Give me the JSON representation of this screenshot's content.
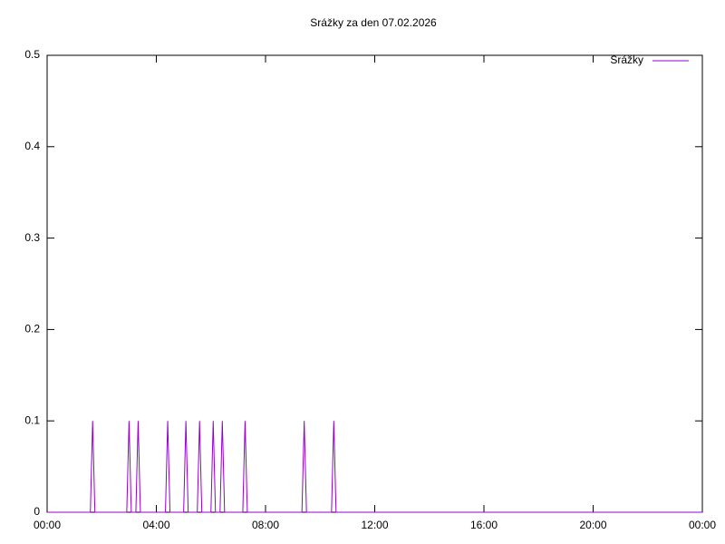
{
  "chart_data": {
    "type": "line",
    "title": "Srážky za den 07.02.2026",
    "x": [
      0,
      95,
      100,
      105,
      175,
      180,
      185,
      195,
      200,
      205,
      260,
      265,
      270,
      300,
      305,
      310,
      330,
      335,
      340,
      360,
      365,
      370,
      380,
      385,
      390,
      430,
      435,
      440,
      560,
      565,
      570,
      625,
      630,
      635,
      1440
    ],
    "series": [
      {
        "name": "Srážky",
        "color": "#9400d3",
        "values": [
          0,
          0,
          0.1,
          0,
          0,
          0.1,
          0,
          0,
          0.1,
          0,
          0,
          0.1,
          0,
          0,
          0.1,
          0,
          0,
          0.1,
          0,
          0,
          0.1,
          0,
          0,
          0.1,
          0,
          0,
          0.1,
          0,
          0,
          0.1,
          0,
          0,
          0.1,
          0,
          0
        ]
      }
    ],
    "xlim": [
      0,
      1440
    ],
    "xticks": [
      {
        "value": 0,
        "label": "00:00"
      },
      {
        "value": 240,
        "label": "04:00"
      },
      {
        "value": 480,
        "label": "08:00"
      },
      {
        "value": 720,
        "label": "12:00"
      },
      {
        "value": 960,
        "label": "16:00"
      },
      {
        "value": 1200,
        "label": "20:00"
      },
      {
        "value": 1440,
        "label": "00:00"
      }
    ],
    "ylim": [
      0,
      0.5
    ],
    "yticks": [
      0,
      0.1,
      0.2,
      0.3,
      0.4,
      0.5
    ],
    "legend": "top-right"
  }
}
